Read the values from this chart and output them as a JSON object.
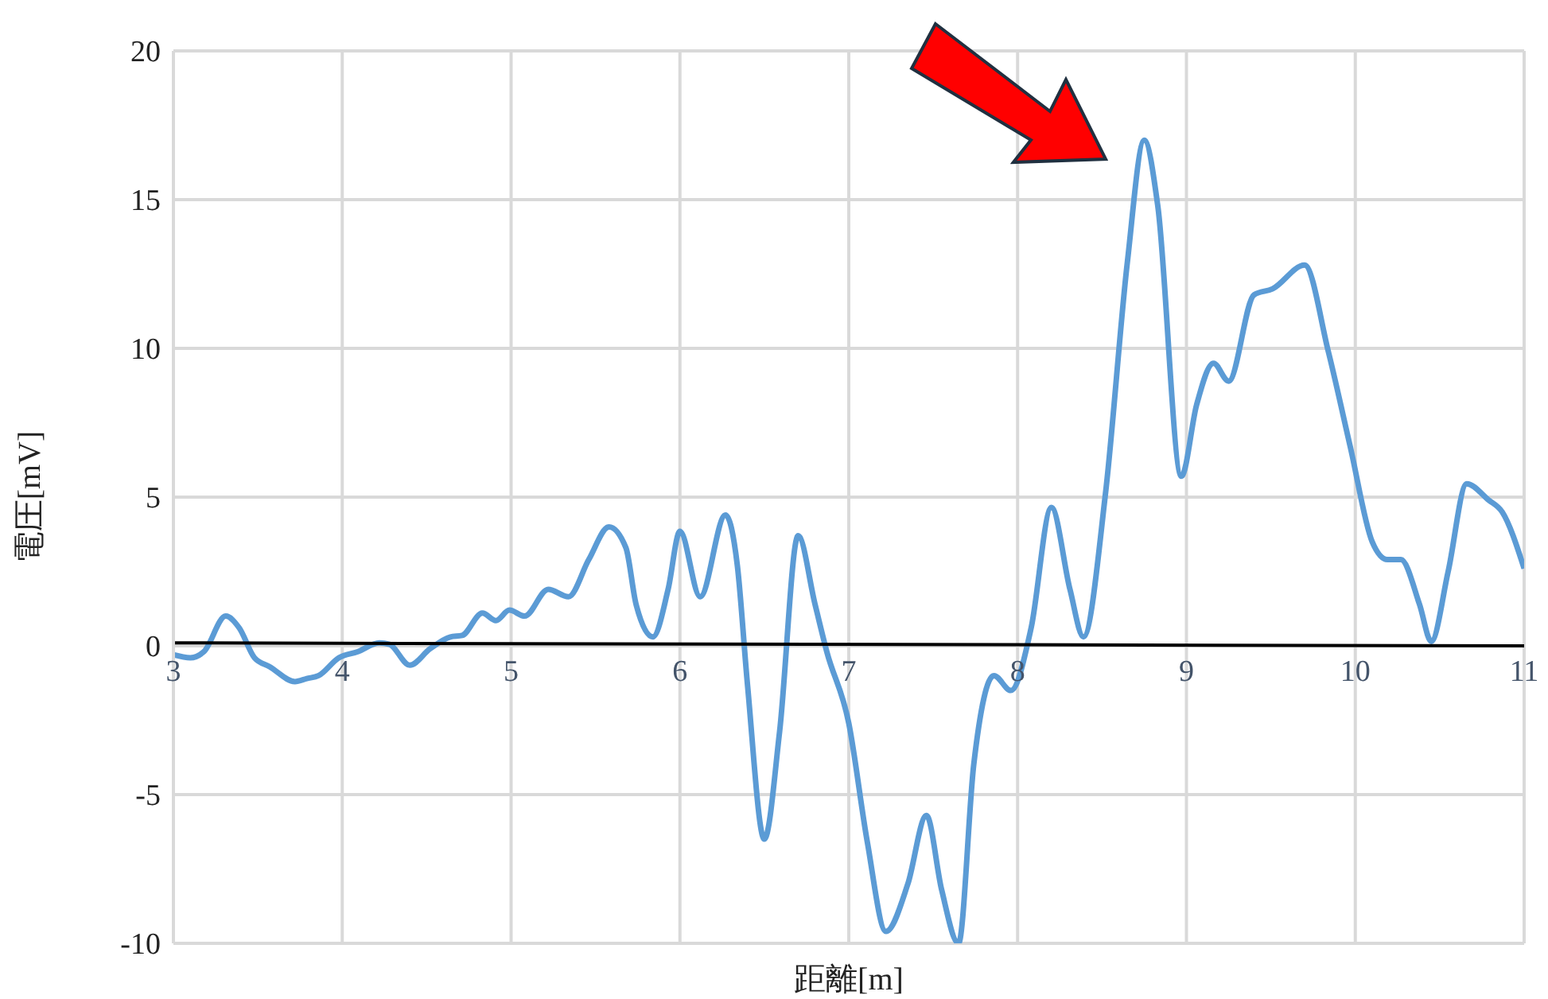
{
  "chart_data": {
    "type": "line",
    "xlabel": "距離[m]",
    "ylabel": "電圧[mV]",
    "xlim": [
      3,
      11
    ],
    "xticks": [
      3,
      4,
      5,
      6,
      7,
      8,
      9,
      10,
      11
    ],
    "ylim": [
      -10,
      20
    ],
    "yticks": [
      -10,
      -5,
      0,
      5,
      10,
      15,
      20
    ],
    "grid": true,
    "marker": "none",
    "series": [
      {
        "color": "#5b9bd5",
        "x": [
          3,
          3.1,
          3.18,
          3.31,
          3.39,
          3.48,
          3.57,
          3.72,
          3.79,
          3.86,
          3.98,
          4.09,
          4.22,
          4.28,
          4.4,
          4.52,
          4.64,
          4.71,
          4.83,
          4.91,
          4.99,
          5.08,
          5.22,
          5.34,
          5.46,
          5.58,
          5.68,
          5.74,
          5.84,
          5.93,
          6,
          6.12,
          6.27,
          6.34,
          6.4,
          6.5,
          6.59,
          6.7,
          6.8,
          6.87,
          7,
          7.11,
          7.22,
          7.35,
          7.46,
          7.55,
          7.65,
          7.74,
          7.86,
          7.96,
          8.08,
          8.2,
          8.31,
          8.39,
          8.52,
          8.65,
          8.75,
          8.83,
          8.97,
          9.06,
          9.16,
          9.25,
          9.4,
          9.51,
          9.7,
          9.84,
          9.97,
          10.1,
          10.19,
          10.27,
          10.38,
          10.45,
          10.55,
          10.66,
          10.79,
          10.87,
          11
        ],
        "values": [
          -0.3,
          -0.4,
          -0.2,
          1,
          0.6,
          -0.4,
          -0.7,
          -1.2,
          -1.1,
          -1,
          -0.4,
          -0.2,
          0.1,
          0.05,
          -0.65,
          -0.1,
          0.3,
          0.35,
          1.1,
          0.85,
          1.2,
          1,
          1.9,
          1.65,
          2.9,
          4,
          3.3,
          1.4,
          0.3,
          1.9,
          3.85,
          1.65,
          4.4,
          2.7,
          -1.3,
          -6.5,
          -2.9,
          3.7,
          1.4,
          -0.2,
          -2.6,
          -6.6,
          -9.6,
          -8,
          -5.7,
          -8.2,
          -10,
          -4,
          -1,
          -1.5,
          0.6,
          4.65,
          1.9,
          0.3,
          5.1,
          12.9,
          17,
          14.8,
          5.7,
          8.1,
          9.5,
          8.9,
          11.8,
          12,
          12.8,
          9.9,
          6.7,
          3.5,
          2.9,
          2.9,
          1.4,
          0.15,
          2.5,
          5.45,
          4.9,
          4.5,
          2.6
        ]
      },
      {
        "color": "#000000",
        "x": [
          3,
          11
        ],
        "values": [
          0.1,
          0
        ]
      }
    ]
  }
}
